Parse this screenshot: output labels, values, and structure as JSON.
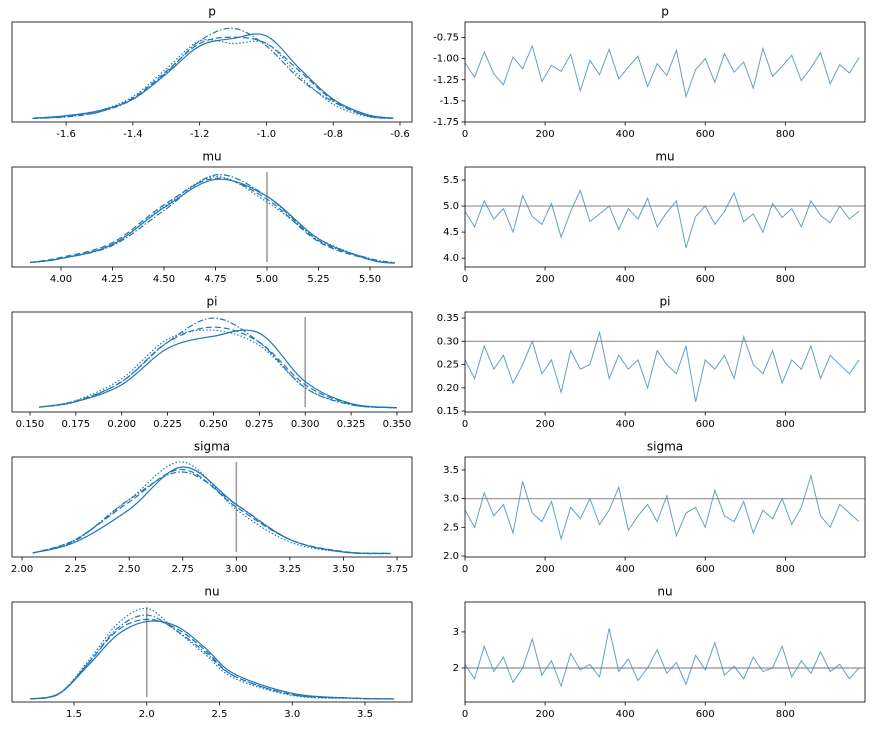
{
  "chart_data": [
    {
      "type": "kde",
      "title": "p",
      "color": "#1f77b4",
      "x": [
        -1.7,
        -1.6,
        -1.5,
        -1.4,
        -1.3,
        -1.2,
        -1.1,
        -1.0,
        -0.9,
        -0.8,
        -0.7,
        -0.62
      ],
      "series": [
        {
          "dash": "solid",
          "values": [
            0.05,
            0.15,
            0.35,
            0.8,
            1.8,
            2.9,
            3.2,
            3.3,
            2.0,
            0.8,
            0.2,
            0.05
          ]
        },
        {
          "dash": "dashed",
          "values": [
            0.05,
            0.12,
            0.3,
            0.85,
            1.9,
            3.0,
            3.25,
            3.0,
            1.9,
            0.75,
            0.15,
            0.04
          ]
        },
        {
          "dash": "dashdot",
          "values": [
            0.04,
            0.1,
            0.3,
            0.8,
            1.85,
            3.1,
            3.6,
            2.9,
            1.6,
            0.7,
            0.15,
            0.04
          ]
        },
        {
          "dash": "dotted",
          "values": [
            0.05,
            0.12,
            0.35,
            0.9,
            2.0,
            3.1,
            3.0,
            3.0,
            1.7,
            0.6,
            0.12,
            0.04
          ]
        }
      ],
      "xlim": [
        -1.762,
        -0.564
      ],
      "ylim": [
        -0.1,
        3.85
      ],
      "xticks": [
        -1.6,
        -1.4,
        -1.2,
        {
          "value": -1.0,
          "label": "-1.0"
        },
        -0.8,
        -0.6
      ]
    },
    {
      "type": "trace",
      "title": "p",
      "color": "#1f77b4",
      "x": [
        0,
        24,
        48,
        72,
        96,
        120,
        144,
        168,
        192,
        216,
        240,
        264,
        288,
        312,
        336,
        360,
        384,
        408,
        432,
        456,
        480,
        504,
        528,
        552,
        576,
        600,
        624,
        648,
        672,
        696,
        720,
        744,
        768,
        792,
        816,
        840,
        864,
        888,
        912,
        936,
        960,
        984
      ],
      "values": [
        -1.05,
        -1.22,
        -0.92,
        -1.18,
        -1.31,
        -0.98,
        -1.12,
        -0.85,
        -1.27,
        -1.08,
        -1.15,
        -0.95,
        -1.38,
        -1.02,
        -1.19,
        -0.89,
        -1.24,
        -1.1,
        -0.97,
        -1.33,
        -1.06,
        -1.2,
        -0.9,
        -1.45,
        -1.13,
        -1.0,
        -1.28,
        -0.94,
        -1.16,
        -1.04,
        -1.35,
        -0.88,
        -1.21,
        -1.09,
        -0.96,
        -1.26,
        -1.11,
        -0.93,
        -1.3,
        -1.07,
        -1.17,
        -0.99
      ],
      "xlim": [
        0,
        999
      ],
      "ylim": [
        -1.75,
        -0.566
      ],
      "xticks": [
        0,
        200,
        400,
        600,
        800
      ],
      "yticks": [
        -1.75,
        -1.5,
        -1.25,
        {
          "value": -1.0,
          "label": "-1.00"
        },
        -0.75
      ]
    },
    {
      "type": "kde",
      "title": "mu",
      "color": "#1f77b4",
      "ref": 5.0,
      "x": [
        3.85,
        4.0,
        4.25,
        4.5,
        4.75,
        5.0,
        5.25,
        5.5,
        5.62
      ],
      "series": [
        {
          "dash": "solid",
          "values": [
            0.03,
            0.1,
            0.35,
            1.0,
            1.5,
            1.2,
            0.45,
            0.08,
            0.02
          ]
        },
        {
          "dash": "dashed",
          "values": [
            0.03,
            0.12,
            0.38,
            1.05,
            1.52,
            1.15,
            0.4,
            0.08,
            0.02
          ]
        },
        {
          "dash": "dashdot",
          "values": [
            0.03,
            0.1,
            0.33,
            0.95,
            1.58,
            1.2,
            0.42,
            0.1,
            0.03
          ]
        },
        {
          "dash": "dotted",
          "values": [
            0.03,
            0.1,
            0.35,
            1.02,
            1.55,
            1.1,
            0.45,
            0.09,
            0.02
          ]
        }
      ],
      "xlim": [
        3.762,
        5.704
      ],
      "ylim": [
        -0.05,
        1.72
      ],
      "xticks": [
        {
          "value": 4.0,
          "label": "4.00"
        },
        4.25,
        {
          "value": 4.5,
          "label": "4.50"
        },
        4.75,
        {
          "value": 5.0,
          "label": "5.00"
        },
        5.25,
        {
          "value": 5.5,
          "label": "5.50"
        }
      ]
    },
    {
      "type": "trace",
      "title": "mu",
      "color": "#1f77b4",
      "ref": 5.0,
      "x": [
        0,
        24,
        48,
        72,
        96,
        120,
        144,
        168,
        192,
        216,
        240,
        264,
        288,
        312,
        336,
        360,
        384,
        408,
        432,
        456,
        480,
        504,
        528,
        552,
        576,
        600,
        624,
        648,
        672,
        696,
        720,
        744,
        768,
        792,
        816,
        840,
        864,
        888,
        912,
        936,
        960,
        984
      ],
      "values": [
        4.9,
        4.6,
        5.1,
        4.75,
        4.95,
        4.5,
        5.2,
        4.8,
        4.65,
        5.05,
        4.4,
        4.9,
        5.3,
        4.7,
        4.85,
        5.0,
        4.55,
        4.95,
        4.75,
        5.15,
        4.6,
        4.88,
        5.1,
        4.2,
        4.8,
        5.0,
        4.65,
        4.9,
        5.25,
        4.7,
        4.85,
        4.5,
        5.05,
        4.78,
        4.95,
        4.6,
        5.1,
        4.82,
        4.68,
        5.0,
        4.75,
        4.9
      ],
      "xlim": [
        0,
        999
      ],
      "ylim": [
        3.83,
        5.75
      ],
      "xticks": [
        0,
        200,
        400,
        600,
        800
      ],
      "yticks": [
        {
          "value": 4.0,
          "label": "4.0"
        },
        4.5,
        {
          "value": 5.0,
          "label": "5.0"
        },
        5.5
      ]
    },
    {
      "type": "kde",
      "title": "pi",
      "color": "#1f77b4",
      "ref": 0.3,
      "x": [
        0.155,
        0.175,
        0.2,
        0.225,
        0.25,
        0.275,
        0.3,
        0.325,
        0.35
      ],
      "series": [
        {
          "dash": "solid",
          "values": [
            0.3,
            1.2,
            4,
            10,
            12,
            12.5,
            4.5,
            0.9,
            0.2
          ]
        },
        {
          "dash": "dashed",
          "values": [
            0.3,
            1.3,
            4.5,
            11,
            13.5,
            11,
            4,
            0.8,
            0.2
          ]
        },
        {
          "dash": "dashdot",
          "values": [
            0.3,
            1.2,
            4.5,
            11,
            15,
            11,
            3.5,
            0.7,
            0.2
          ]
        },
        {
          "dash": "dotted",
          "values": [
            0.3,
            1.4,
            5,
            11.5,
            13,
            10.5,
            3.5,
            0.7,
            0.2
          ]
        }
      ],
      "xlim": [
        0.1402,
        0.3582
      ],
      "ylim": [
        -0.5,
        16
      ],
      "xticks": [
        {
          "value": 0.15,
          "label": "0.150"
        },
        0.175,
        {
          "value": 0.2,
          "label": "0.200"
        },
        0.225,
        {
          "value": 0.25,
          "label": "0.250"
        },
        0.275,
        {
          "value": 0.3,
          "label": "0.300"
        },
        0.325,
        {
          "value": 0.35,
          "label": "0.350"
        }
      ]
    },
    {
      "type": "trace",
      "title": "pi",
      "color": "#1f77b4",
      "ref": 0.3,
      "x": [
        0,
        24,
        48,
        72,
        96,
        120,
        144,
        168,
        192,
        216,
        240,
        264,
        288,
        312,
        336,
        360,
        384,
        408,
        432,
        456,
        480,
        504,
        528,
        552,
        576,
        600,
        624,
        648,
        672,
        696,
        720,
        744,
        768,
        792,
        816,
        840,
        864,
        888,
        912,
        936,
        960,
        984
      ],
      "values": [
        0.26,
        0.22,
        0.29,
        0.24,
        0.27,
        0.21,
        0.25,
        0.3,
        0.23,
        0.26,
        0.19,
        0.28,
        0.24,
        0.25,
        0.32,
        0.22,
        0.27,
        0.24,
        0.26,
        0.2,
        0.28,
        0.25,
        0.23,
        0.29,
        0.17,
        0.26,
        0.24,
        0.27,
        0.22,
        0.31,
        0.25,
        0.23,
        0.28,
        0.21,
        0.26,
        0.24,
        0.29,
        0.22,
        0.27,
        0.25,
        0.23,
        0.26
      ],
      "xlim": [
        0,
        999
      ],
      "ylim": [
        0.148,
        0.363
      ],
      "xticks": [
        0,
        200,
        400,
        600,
        800
      ],
      "yticks": [
        0.15,
        {
          "value": 0.2,
          "label": "0.20"
        },
        0.25,
        {
          "value": 0.3,
          "label": "0.30"
        },
        0.35
      ]
    },
    {
      "type": "kde",
      "title": "sigma",
      "color": "#1f77b4",
      "ref": 3.0,
      "x": [
        2.05,
        2.25,
        2.5,
        2.75,
        3.0,
        3.25,
        3.5,
        3.72
      ],
      "series": [
        {
          "dash": "solid",
          "values": [
            0.03,
            0.25,
            0.9,
            1.75,
            1.0,
            0.3,
            0.05,
            0.02
          ]
        },
        {
          "dash": "dashed",
          "values": [
            0.03,
            0.3,
            1.05,
            1.7,
            0.95,
            0.3,
            0.06,
            0.02
          ]
        },
        {
          "dash": "dashdot",
          "values": [
            0.03,
            0.28,
            1.1,
            1.65,
            1.0,
            0.3,
            0.05,
            0.02
          ]
        },
        {
          "dash": "dotted",
          "values": [
            0.03,
            0.3,
            1.1,
            1.85,
            0.9,
            0.25,
            0.05,
            0.02
          ]
        }
      ],
      "xlim": [
        1.953,
        3.82
      ],
      "ylim": [
        -0.05,
        1.95
      ],
      "xticks": [
        {
          "value": 2.0,
          "label": "2.00"
        },
        2.25,
        {
          "value": 2.5,
          "label": "2.50"
        },
        2.75,
        {
          "value": 3.0,
          "label": "3.00"
        },
        3.25,
        {
          "value": 3.5,
          "label": "3.50"
        },
        3.75
      ]
    },
    {
      "type": "trace",
      "title": "sigma",
      "color": "#1f77b4",
      "ref": 3.0,
      "x": [
        0,
        24,
        48,
        72,
        96,
        120,
        144,
        168,
        192,
        216,
        240,
        264,
        288,
        312,
        336,
        360,
        384,
        408,
        432,
        456,
        480,
        504,
        528,
        552,
        576,
        600,
        624,
        648,
        672,
        696,
        720,
        744,
        768,
        792,
        816,
        840,
        864,
        888,
        912,
        936,
        960,
        984
      ],
      "values": [
        2.8,
        2.5,
        3.1,
        2.7,
        2.9,
        2.4,
        3.3,
        2.75,
        2.6,
        2.95,
        2.3,
        2.85,
        2.65,
        3.0,
        2.55,
        2.8,
        3.2,
        2.45,
        2.7,
        2.9,
        2.6,
        3.05,
        2.35,
        2.75,
        2.85,
        2.5,
        3.15,
        2.7,
        2.6,
        2.95,
        2.4,
        2.8,
        2.65,
        3.0,
        2.55,
        2.85,
        3.4,
        2.7,
        2.5,
        2.9,
        2.75,
        2.6
      ],
      "xlim": [
        0,
        999
      ],
      "ylim": [
        1.983,
        3.727
      ],
      "xticks": [
        0,
        200,
        400,
        600,
        800
      ],
      "yticks": [
        {
          "value": 2.0,
          "label": "2.0"
        },
        2.5,
        {
          "value": 3.0,
          "label": "3.0"
        },
        3.5
      ]
    },
    {
      "type": "kde",
      "title": "nu",
      "color": "#1f77b4",
      "ref": 2.0,
      "x": [
        1.2,
        1.4,
        1.6,
        1.8,
        2.0,
        2.2,
        2.4,
        2.6,
        3.0,
        3.4,
        3.7
      ],
      "series": [
        {
          "dash": "solid",
          "values": [
            0.02,
            0.15,
            0.8,
            1.5,
            1.8,
            1.7,
            1.2,
            0.6,
            0.15,
            0.04,
            0.02
          ]
        },
        {
          "dash": "dashed",
          "values": [
            0.02,
            0.15,
            0.85,
            1.6,
            1.85,
            1.65,
            1.15,
            0.55,
            0.12,
            0.04,
            0.02
          ]
        },
        {
          "dash": "dashdot",
          "values": [
            0.02,
            0.14,
            0.85,
            1.65,
            1.95,
            1.6,
            1.1,
            0.55,
            0.12,
            0.04,
            0.02
          ]
        },
        {
          "dash": "dotted",
          "values": [
            0.02,
            0.15,
            0.9,
            1.75,
            2.1,
            1.6,
            1.05,
            0.5,
            0.1,
            0.03,
            0.02
          ]
        }
      ],
      "xlim": [
        1.074,
        3.823
      ],
      "ylim": [
        -0.05,
        2.25
      ],
      "xticks": [
        1.5,
        {
          "value": 2.0,
          "label": "2.0"
        },
        2.5,
        {
          "value": 3.0,
          "label": "3.0"
        },
        3.5
      ]
    },
    {
      "type": "trace",
      "title": "nu",
      "color": "#1f77b4",
      "ref": 2.0,
      "x": [
        0,
        24,
        48,
        72,
        96,
        120,
        144,
        168,
        192,
        216,
        240,
        264,
        288,
        312,
        336,
        360,
        384,
        408,
        432,
        456,
        480,
        504,
        528,
        552,
        576,
        600,
        624,
        648,
        672,
        696,
        720,
        744,
        768,
        792,
        816,
        840,
        864,
        888,
        912,
        936,
        960,
        984
      ],
      "values": [
        2.1,
        1.7,
        2.6,
        1.9,
        2.3,
        1.6,
        2.0,
        2.8,
        1.8,
        2.2,
        1.5,
        2.4,
        1.95,
        2.1,
        1.75,
        3.1,
        1.9,
        2.25,
        1.65,
        2.0,
        2.5,
        1.85,
        2.15,
        1.55,
        2.35,
        1.95,
        2.7,
        1.8,
        2.05,
        1.7,
        2.3,
        1.9,
        2.0,
        2.6,
        1.75,
        2.2,
        1.85,
        2.45,
        1.9,
        2.1,
        1.7,
        2.0
      ],
      "xlim": [
        0,
        999
      ],
      "ylim": [
        1.056,
        3.83
      ],
      "xticks": [
        0,
        200,
        400,
        600,
        800
      ],
      "yticks": [
        2,
        3
      ]
    }
  ]
}
